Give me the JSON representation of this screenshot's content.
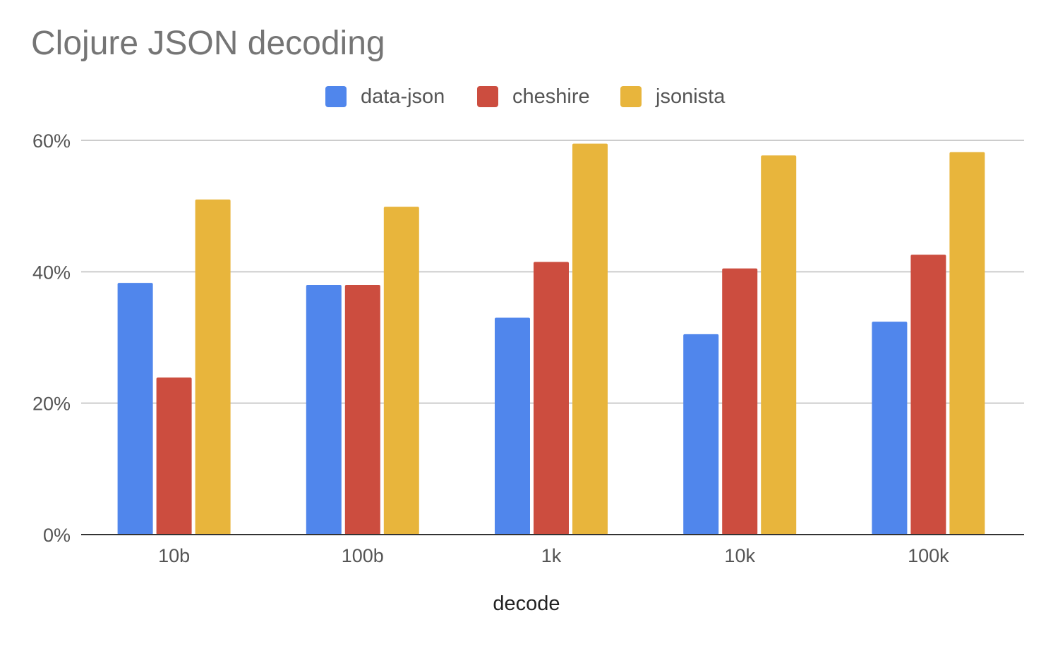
{
  "chart_data": {
    "type": "bar",
    "title": "Clojure JSON decoding",
    "xlabel": "decode",
    "ylabel": "",
    "categories": [
      "10b",
      "100b",
      "1k",
      "10k",
      "100k"
    ],
    "series": [
      {
        "name": "data-json",
        "color": "#5086EC",
        "values": [
          38.3,
          38.0,
          33.0,
          30.5,
          32.4
        ]
      },
      {
        "name": "cheshire",
        "color": "#CC4D3F",
        "values": [
          23.9,
          38.0,
          41.5,
          40.5,
          42.6
        ]
      },
      {
        "name": "jsonista",
        "color": "#E8B53C",
        "values": [
          51.0,
          49.9,
          59.5,
          57.7,
          58.2
        ]
      }
    ],
    "ylim": [
      0,
      60
    ],
    "yticks": [
      "0%",
      "20%",
      "40%",
      "60%"
    ],
    "ytick_values": [
      0,
      20,
      40,
      60
    ],
    "legend_position": "top-center",
    "grid": true
  }
}
